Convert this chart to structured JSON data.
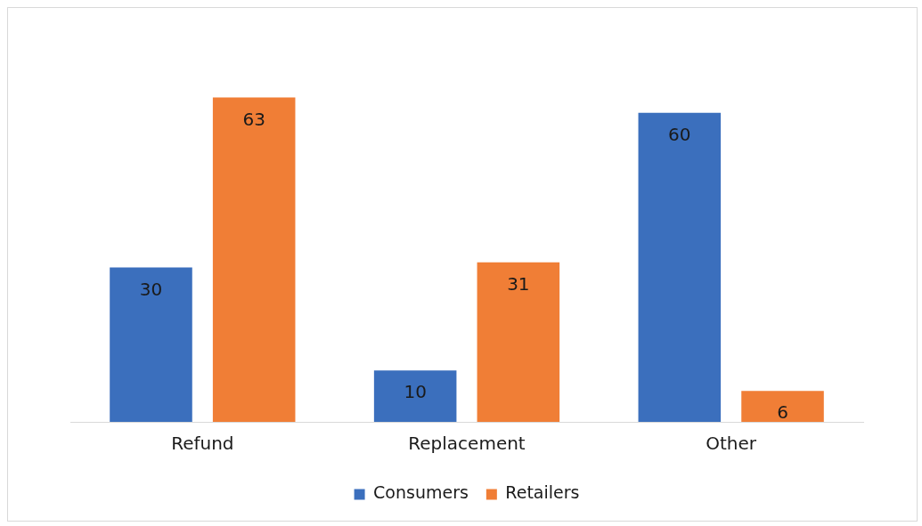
{
  "chart_data": {
    "type": "bar",
    "categories": [
      "Refund",
      "Replacement",
      "Other"
    ],
    "series": [
      {
        "name": "Consumers",
        "color": "#3b6fbd",
        "values": [
          30,
          10,
          60
        ]
      },
      {
        "name": "Retailers",
        "color": "#f07e36",
        "values": [
          63,
          31,
          6
        ]
      }
    ],
    "data_labels": true,
    "grid": false,
    "legend": "bottom"
  }
}
